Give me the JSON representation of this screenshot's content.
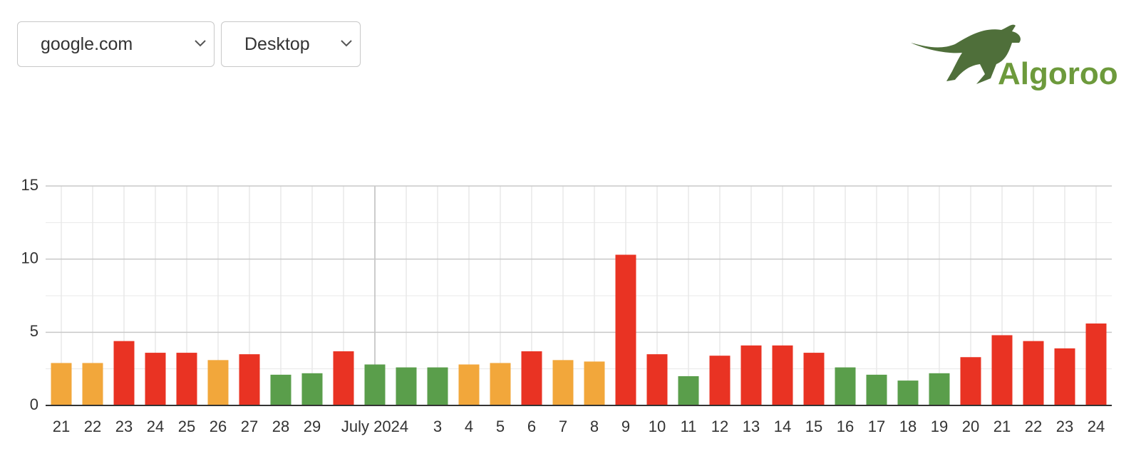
{
  "controls": {
    "site": "google.com",
    "device": "Desktop"
  },
  "logo": {
    "text": "Algoroo"
  },
  "chart_data": {
    "type": "bar",
    "categories": [
      "21",
      "22",
      "23",
      "24",
      "25",
      "26",
      "27",
      "28",
      "29",
      null,
      "July 2024",
      null,
      "3",
      "4",
      "5",
      "6",
      "7",
      "8",
      "9",
      "10",
      "11",
      "12",
      "13",
      "14",
      "15",
      "16",
      "17",
      "18",
      "19",
      "20",
      "21",
      "22",
      "23",
      "24"
    ],
    "values": [
      2.9,
      2.9,
      4.4,
      3.6,
      3.6,
      3.1,
      3.5,
      2.1,
      2.2,
      3.7,
      2.8,
      2.6,
      2.6,
      2.8,
      2.9,
      3.7,
      3.1,
      3.0,
      10.3,
      3.5,
      2.0,
      3.4,
      4.1,
      4.1,
      3.6,
      2.6,
      2.1,
      1.7,
      2.2,
      3.3,
      4.8,
      4.4,
      3.9,
      5.6
    ],
    "colors": [
      "#f2a73b",
      "#f2a73b",
      "#e93323",
      "#e93323",
      "#e93323",
      "#f2a73b",
      "#e93323",
      "#5a9e4b",
      "#5a9e4b",
      "#e93323",
      "#5a9e4b",
      "#5a9e4b",
      "#5a9e4b",
      "#f2a73b",
      "#f2a73b",
      "#e93323",
      "#f2a73b",
      "#f2a73b",
      "#e93323",
      "#e93323",
      "#5a9e4b",
      "#e93323",
      "#e93323",
      "#e93323",
      "#e93323",
      "#5a9e4b",
      "#5a9e4b",
      "#5a9e4b",
      "#5a9e4b",
      "#e93323",
      "#e93323",
      "#e93323",
      "#e93323",
      "#e93323"
    ],
    "ylim": [
      0,
      15
    ],
    "yticks": [
      0,
      5,
      10,
      15
    ],
    "grid": true
  }
}
